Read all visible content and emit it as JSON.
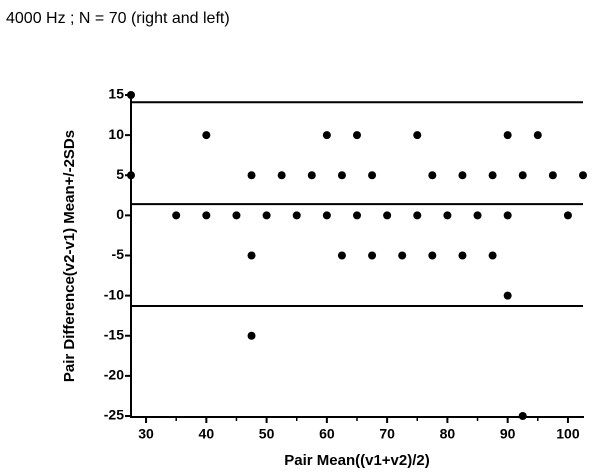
{
  "chart_data": {
    "type": "scatter",
    "title": "4000 Hz ; N = 70 (right and left)",
    "x_label": "Pair Mean((v1+v2)/2)",
    "y_label": "Pair Difference(v2-v1) Mean+/-2SDs",
    "series": [
      {
        "color": "#000000",
        "x": [
          27.5,
          40,
          60,
          65,
          75,
          90,
          95,
          27.5,
          47.5,
          52.5,
          57.5,
          62.5,
          67.5,
          77.5,
          82.5,
          87.5,
          92.5,
          97.5,
          102.5,
          35,
          40,
          45,
          50,
          55,
          60,
          65,
          70,
          75,
          80,
          85,
          90,
          100,
          47.5,
          62.5,
          67.5,
          72.5,
          77.5,
          82.5,
          87.5,
          90,
          47.5,
          92.5
        ],
        "values": [
          15,
          10,
          10,
          10,
          10,
          10,
          10,
          5,
          5,
          5,
          5,
          5,
          5,
          5,
          5,
          5,
          5,
          5,
          5,
          0,
          0,
          0,
          0,
          0,
          0,
          0,
          0,
          0,
          0,
          0,
          0,
          0,
          -5,
          -5,
          -5,
          -5,
          -5,
          -5,
          -5,
          -10,
          -15,
          -25
        ]
      }
    ],
    "reference_lines": [
      14.1,
      1.4,
      -11.3
    ],
    "xlim": [
      27.5,
      102.5
    ],
    "xticks": [
      30,
      40,
      50,
      60,
      70,
      80,
      90,
      100
    ],
    "xminorticks": [
      35,
      45,
      55,
      65,
      75,
      85,
      95
    ],
    "ylim": [
      -25,
      15
    ],
    "yticks": [
      -25,
      -20,
      -15,
      -10,
      -5,
      0,
      5,
      10,
      15
    ]
  }
}
